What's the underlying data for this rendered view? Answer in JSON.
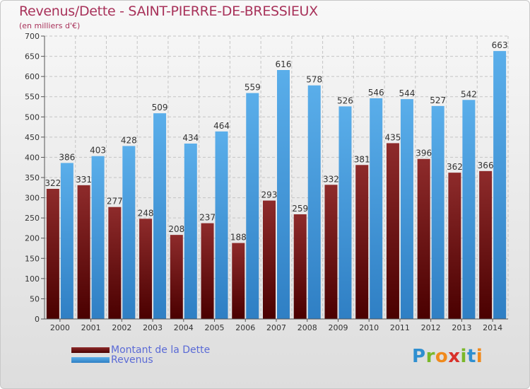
{
  "chart_data": {
    "type": "bar",
    "title": "Revenus/Dette - SAINT-PIERRE-DE-BRESSIEUX",
    "subtitle": "(en milliers d'€)",
    "categories": [
      "2000",
      "2001",
      "2002",
      "2003",
      "2004",
      "2005",
      "2006",
      "2007",
      "2008",
      "2009",
      "2010",
      "2011",
      "2012",
      "2013",
      "2014"
    ],
    "series": [
      {
        "name": "Montant de la Dette",
        "color": "#7a1a1a",
        "values": [
          322,
          331,
          277,
          248,
          208,
          237,
          188,
          293,
          259,
          332,
          381,
          435,
          396,
          362,
          366
        ]
      },
      {
        "name": "Revenus",
        "color": "#4ea0e0",
        "values": [
          386,
          403,
          428,
          509,
          434,
          464,
          559,
          616,
          578,
          526,
          546,
          544,
          527,
          542,
          663
        ]
      }
    ],
    "ylim": [
      0,
      700
    ],
    "yticks": [
      0,
      50,
      100,
      150,
      200,
      250,
      300,
      350,
      400,
      450,
      500,
      550,
      600,
      650,
      700
    ],
    "grid": true,
    "legend_position": "bottom-left"
  },
  "logo": {
    "letters": [
      {
        "ch": "P",
        "color": "#2f8fd0"
      },
      {
        "ch": "r",
        "color": "#7ab82a"
      },
      {
        "ch": "o",
        "color": "#f08a1c"
      },
      {
        "ch": "x",
        "color": "#d8302a"
      },
      {
        "ch": "i",
        "color": "#7ab82a"
      },
      {
        "ch": "t",
        "color": "#2f8fd0"
      },
      {
        "ch": "i",
        "color": "#f08a1c"
      }
    ]
  }
}
